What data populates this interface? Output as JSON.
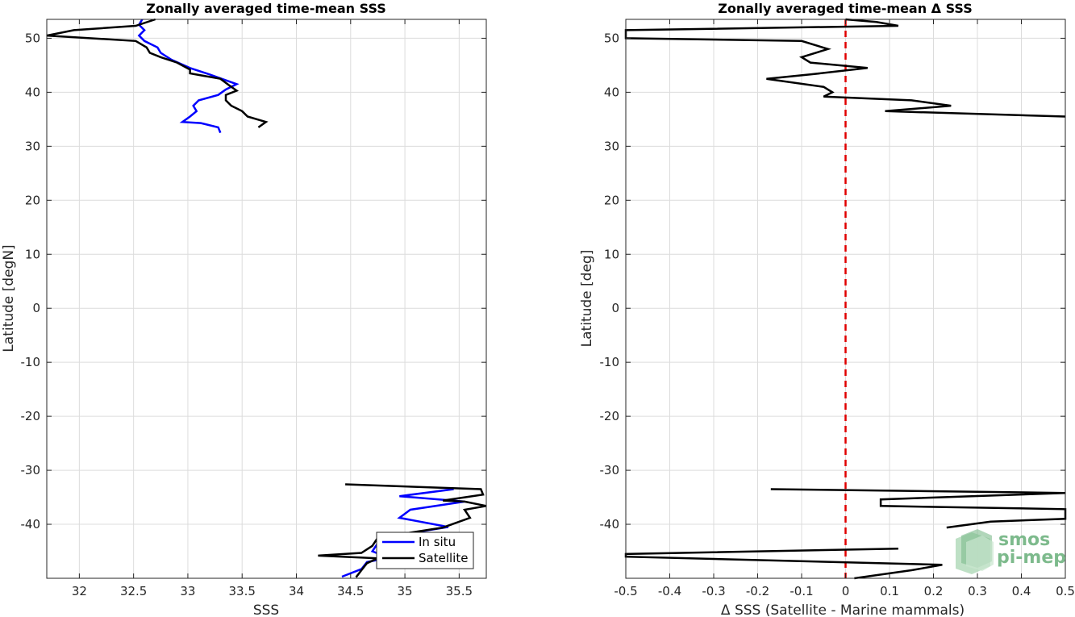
{
  "chart_data": [
    {
      "type": "line",
      "title": "Zonally averaged time-mean SSS",
      "xlabel": "SSS",
      "ylabel": "Latitude [degN]",
      "xlim": [
        31.7,
        35.75
      ],
      "ylim": [
        -50,
        53.5
      ],
      "xticks": [
        "32",
        "32.5",
        "33",
        "33.5",
        "34",
        "34.5",
        "35",
        "35.5"
      ],
      "xtick_values": [
        32,
        32.5,
        33,
        33.5,
        34,
        34.5,
        35,
        35.5
      ],
      "yticks": [
        "50",
        "40",
        "30",
        "20",
        "10",
        "0",
        "-10",
        "-20",
        "-30",
        "-40"
      ],
      "ytick_values": [
        50,
        40,
        30,
        20,
        10,
        0,
        -10,
        -20,
        -30,
        -40
      ],
      "grid": true,
      "legend_position": "bottom-right",
      "series": [
        {
          "name": "In situ",
          "color": "#0000ff",
          "segments": [
            [
              [
                32.58,
                53.5
              ],
              [
                32.55,
                52.5
              ],
              [
                32.6,
                51.5
              ],
              [
                32.55,
                50.5
              ],
              [
                32.6,
                49.5
              ],
              [
                32.72,
                48.3
              ],
              [
                32.75,
                47.3
              ],
              [
                32.85,
                46
              ],
              [
                33.02,
                44.5
              ],
              [
                33.2,
                43.3
              ],
              [
                33.45,
                41.5
              ],
              [
                33.35,
                40.5
              ],
              [
                33.28,
                39.5
              ],
              [
                33.1,
                38.5
              ],
              [
                33.05,
                37.5
              ],
              [
                33.08,
                36.5
              ],
              [
                33.02,
                35.5
              ],
              [
                32.95,
                34.5
              ],
              [
                33.12,
                34.3
              ],
              [
                33.28,
                33.5
              ],
              [
                33.3,
                32.5
              ]
            ],
            [
              [
                35.45,
                -33.5
              ],
              [
                34.95,
                -34.8
              ],
              [
                35.55,
                -35.8
              ],
              [
                35.05,
                -37.3
              ],
              [
                34.95,
                -38.8
              ],
              [
                35.4,
                -40.5
              ],
              [
                34.85,
                -42.3
              ],
              [
                34.75,
                -43.5
              ],
              [
                34.7,
                -45
              ],
              [
                34.85,
                -46.2
              ],
              [
                34.65,
                -47
              ],
              [
                34.6,
                -48.3
              ],
              [
                34.42,
                -49.7
              ]
            ]
          ]
        },
        {
          "name": "Satellite",
          "color": "#000000",
          "segments": [
            [
              [
                32.7,
                53.5
              ],
              [
                32.52,
                52.3
              ],
              [
                31.95,
                51.5
              ],
              [
                31.7,
                50.5
              ],
              [
                32.52,
                49.5
              ],
              [
                32.62,
                48.3
              ],
              [
                32.65,
                47.3
              ],
              [
                32.75,
                46.5
              ],
              [
                32.9,
                45.5
              ],
              [
                33.02,
                44.2
              ],
              [
                33.02,
                43.5
              ],
              [
                33.3,
                42.5
              ],
              [
                33.38,
                41.3
              ],
              [
                33.45,
                40.3
              ],
              [
                33.35,
                39.5
              ],
              [
                33.35,
                38.5
              ],
              [
                33.4,
                37.5
              ],
              [
                33.5,
                36.5
              ],
              [
                33.55,
                35.5
              ],
              [
                33.72,
                34.5
              ],
              [
                33.65,
                33.5
              ]
            ],
            [
              [
                34.45,
                -32.6
              ],
              [
                35.7,
                -33.5
              ],
              [
                35.72,
                -34.5
              ],
              [
                35.35,
                -35.6
              ],
              [
                35.55,
                -35.8
              ],
              [
                35.75,
                -36.6
              ],
              [
                35.55,
                -37.3
              ],
              [
                35.6,
                -38.8
              ],
              [
                35.35,
                -40.6
              ],
              [
                34.75,
                -42.5
              ],
              [
                34.7,
                -44
              ],
              [
                34.6,
                -45.3
              ],
              [
                34.2,
                -45.8
              ],
              [
                34.75,
                -46.3
              ],
              [
                34.65,
                -47.2
              ],
              [
                34.6,
                -48.5
              ],
              [
                34.55,
                -49.8
              ]
            ]
          ]
        }
      ]
    },
    {
      "type": "line",
      "title": "Zonally averaged time-mean Δ SSS",
      "xlabel": "Δ SSS (Satellite - Marine mammals)",
      "ylabel": "Latitude [deg]",
      "xlim": [
        -0.5,
        0.5
      ],
      "ylim": [
        -50,
        53.5
      ],
      "xticks": [
        "-0.5",
        "-0.4",
        "-0.3",
        "-0.2",
        "-0.1",
        "0",
        "0.1",
        "0.2",
        "0.3",
        "0.4",
        "0.5"
      ],
      "xtick_values": [
        -0.5,
        -0.4,
        -0.3,
        -0.2,
        -0.1,
        0,
        0.1,
        0.2,
        0.3,
        0.4,
        0.5
      ],
      "yticks": [
        "50",
        "40",
        "30",
        "20",
        "10",
        "0",
        "-10",
        "-20",
        "-30",
        "-40"
      ],
      "ytick_values": [
        50,
        40,
        30,
        20,
        10,
        0,
        -10,
        -20,
        -30,
        -40
      ],
      "grid": true,
      "zero_line_color": "#e00000",
      "series": [
        {
          "color": "#000000",
          "segments": [
            [
              [
                0,
                53.5
              ],
              [
                0.07,
                53
              ],
              [
                0.12,
                52.3
              ],
              [
                -0.5,
                51.5
              ],
              [
                -0.5,
                50
              ],
              [
                -0.1,
                49.5
              ],
              [
                -0.04,
                48
              ],
              [
                -0.1,
                46.5
              ],
              [
                -0.08,
                45.5
              ],
              [
                0.05,
                44.5
              ],
              [
                -0.08,
                43.3
              ],
              [
                -0.18,
                42.5
              ],
              [
                -0.05,
                41
              ],
              [
                -0.03,
                40
              ],
              [
                -0.05,
                39.2
              ],
              [
                0.15,
                38.5
              ],
              [
                0.24,
                37.5
              ],
              [
                0.09,
                36.5
              ],
              [
                0.5,
                35.5
              ]
            ],
            [
              [
                -0.17,
                -33.5
              ],
              [
                0.5,
                -34.2
              ],
              [
                0.08,
                -35.4
              ],
              [
                0.08,
                -36.6
              ],
              [
                0.5,
                -37.2
              ],
              [
                0.5,
                -39
              ],
              [
                0.33,
                -39.5
              ],
              [
                0.23,
                -40.6
              ]
            ],
            [
              [
                0.12,
                -44.5
              ],
              [
                -0.5,
                -45.5
              ],
              [
                -0.5,
                -46
              ],
              [
                0.22,
                -47.5
              ],
              [
                0.15,
                -48.5
              ],
              [
                0.02,
                -50
              ]
            ]
          ]
        }
      ]
    }
  ],
  "legend": {
    "items": [
      "In situ",
      "Satellite"
    ]
  },
  "logo": {
    "line1": "smos",
    "line2": "pi-mep"
  }
}
